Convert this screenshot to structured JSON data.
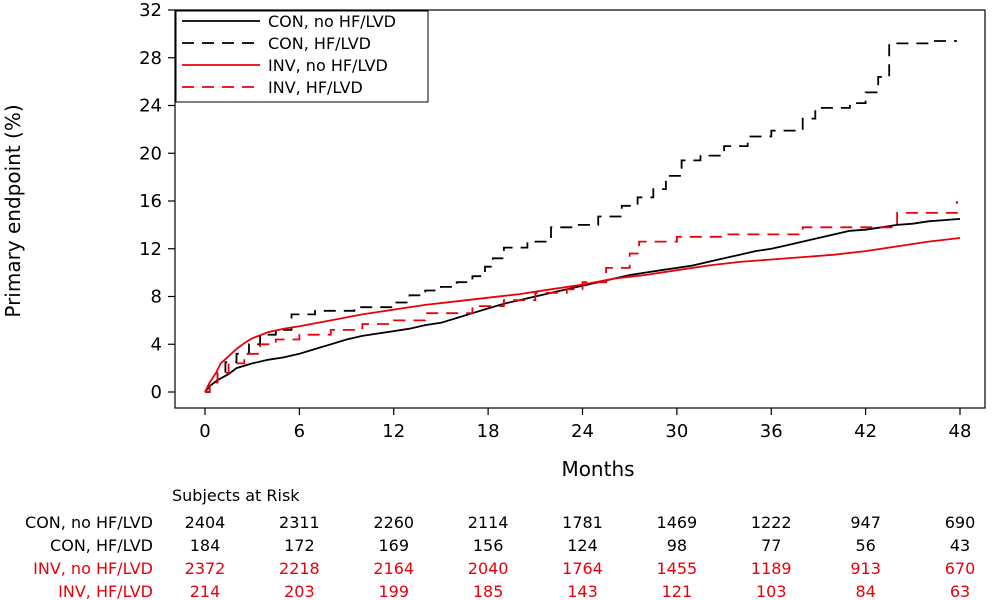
{
  "chart_data": {
    "type": "line",
    "subtype": "kaplan-meier-cumulative-incidence",
    "xlabel": "Months",
    "ylabel": "Primary endpoint (%)",
    "xlim": [
      0,
      48
    ],
    "ylim": [
      0,
      32
    ],
    "xticks": [
      0,
      6,
      12,
      18,
      24,
      30,
      36,
      42,
      48
    ],
    "yticks": [
      0,
      4,
      8,
      12,
      16,
      20,
      24,
      28,
      32
    ],
    "legend_position": "top-left",
    "series": [
      {
        "name": "CON, no HF/LVD",
        "color": "#000000",
        "dash": "solid",
        "step": false,
        "x": [
          0,
          0.3,
          0.8,
          1.5,
          2.0,
          3.0,
          4.0,
          5.0,
          6.0,
          7.0,
          8.0,
          9.0,
          10.0,
          11.0,
          12.0,
          13.0,
          14.0,
          15.0,
          16.0,
          17.0,
          18.0,
          19.0,
          20.0,
          21.0,
          22.0,
          23.0,
          24.0,
          25.0,
          26.0,
          27.0,
          28.0,
          29.0,
          30.0,
          31.0,
          32.0,
          33.0,
          34.0,
          35.0,
          36.0,
          37.0,
          38.0,
          39.0,
          40.0,
          41.0,
          42.0,
          43.0,
          44.0,
          45.0,
          46.0,
          47.0,
          48.0
        ],
        "y": [
          0,
          0.5,
          1.0,
          1.5,
          2.0,
          2.4,
          2.7,
          2.9,
          3.2,
          3.6,
          4.0,
          4.4,
          4.7,
          4.9,
          5.1,
          5.3,
          5.6,
          5.8,
          6.2,
          6.6,
          7.0,
          7.4,
          7.7,
          8.0,
          8.3,
          8.6,
          8.9,
          9.2,
          9.5,
          9.8,
          10.0,
          10.2,
          10.4,
          10.6,
          10.9,
          11.2,
          11.5,
          11.8,
          12.0,
          12.3,
          12.6,
          12.9,
          13.2,
          13.5,
          13.6,
          13.8,
          14.0,
          14.1,
          14.3,
          14.4,
          14.5
        ]
      },
      {
        "name": "CON, HF/LVD",
        "color": "#000000",
        "dash": "12,8",
        "step": true,
        "x": [
          0,
          0.3,
          0.8,
          1.3,
          2.0,
          2.8,
          3.5,
          4.5,
          5.5,
          7.0,
          9.5,
          12.0,
          13.0,
          14.0,
          15.0,
          16.0,
          17.0,
          17.8,
          18.3,
          19.0,
          20.5,
          22.0,
          23.5,
          25.0,
          26.5,
          27.5,
          28.5,
          29.3,
          30.3,
          31.5,
          33.0,
          34.5,
          36.0,
          38.0,
          38.8,
          41.0,
          42.0,
          42.8,
          43.5,
          46.0,
          47.8
        ],
        "y": [
          0,
          0.8,
          1.7,
          2.5,
          3.2,
          4.0,
          4.8,
          5.2,
          6.5,
          6.8,
          7.1,
          7.5,
          8.1,
          8.5,
          8.8,
          9.2,
          9.7,
          10.5,
          11.2,
          12.1,
          12.6,
          13.8,
          14.0,
          14.7,
          15.6,
          16.3,
          17.0,
          18.1,
          19.4,
          19.8,
          20.6,
          21.4,
          21.9,
          22.9,
          23.8,
          24.2,
          25.1,
          26.4,
          29.2,
          29.4,
          29.4
        ]
      },
      {
        "name": "INV, no HF/LVD",
        "color": "#e8000b",
        "dash": "solid",
        "step": false,
        "x": [
          0,
          0.3,
          0.7,
          1.0,
          1.5,
          2.0,
          2.5,
          3.0,
          4.0,
          5.0,
          6.0,
          8.0,
          10.0,
          12.0,
          14.0,
          16.0,
          18.0,
          20.0,
          22.0,
          24.0,
          26.0,
          28.0,
          30.0,
          32.0,
          34.0,
          36.0,
          38.0,
          40.0,
          42.0,
          44.0,
          46.0,
          48.0
        ],
        "y": [
          0,
          0.8,
          1.6,
          2.4,
          3.0,
          3.6,
          4.1,
          4.5,
          5.0,
          5.3,
          5.5,
          6.0,
          6.5,
          6.9,
          7.3,
          7.6,
          7.9,
          8.2,
          8.6,
          9.0,
          9.5,
          9.8,
          10.2,
          10.6,
          10.9,
          11.1,
          11.3,
          11.5,
          11.8,
          12.2,
          12.6,
          12.9
        ]
      },
      {
        "name": "INV, HF/LVD",
        "color": "#e8000b",
        "dash": "12,8",
        "step": true,
        "x": [
          0,
          0.3,
          0.8,
          1.5,
          2.5,
          3.5,
          4.5,
          6.0,
          8.0,
          10.0,
          12.0,
          14.0,
          17.0,
          19.0,
          21.0,
          23.0,
          24.0,
          25.5,
          27.0,
          27.6,
          30.0,
          33.0,
          38.0,
          44.0,
          47.8
        ],
        "y": [
          0,
          0.8,
          1.6,
          2.4,
          3.2,
          4.0,
          4.4,
          4.8,
          5.2,
          5.7,
          6.0,
          6.6,
          7.2,
          7.7,
          8.3,
          8.6,
          9.2,
          10.4,
          11.6,
          12.6,
          13.0,
          13.2,
          13.8,
          15.0,
          16.0
        ]
      }
    ],
    "risk_table": {
      "title": "Subjects at Risk",
      "columns": [
        0,
        6,
        12,
        18,
        24,
        30,
        36,
        42,
        48
      ],
      "rows": [
        {
          "label": "CON, no HF/LVD",
          "color": "#000000",
          "values": [
            "2404",
            "2311",
            "2260",
            "2114",
            "1781",
            "1469",
            "1222",
            "947",
            "690"
          ]
        },
        {
          "label": "CON, HF/LVD",
          "color": "#000000",
          "values": [
            "184",
            "172",
            "169",
            "156",
            "124",
            "98",
            "77",
            "56",
            "43"
          ]
        },
        {
          "label": "INV, no HF/LVD",
          "color": "#e8000b",
          "values": [
            "2372",
            "2218",
            "2164",
            "2040",
            "1764",
            "1455",
            "1189",
            "913",
            "670"
          ]
        },
        {
          "label": "INV, HF/LVD",
          "color": "#e8000b",
          "values": [
            "214",
            "203",
            "199",
            "185",
            "143",
            "121",
            "103",
            "84",
            "63"
          ]
        }
      ]
    }
  }
}
